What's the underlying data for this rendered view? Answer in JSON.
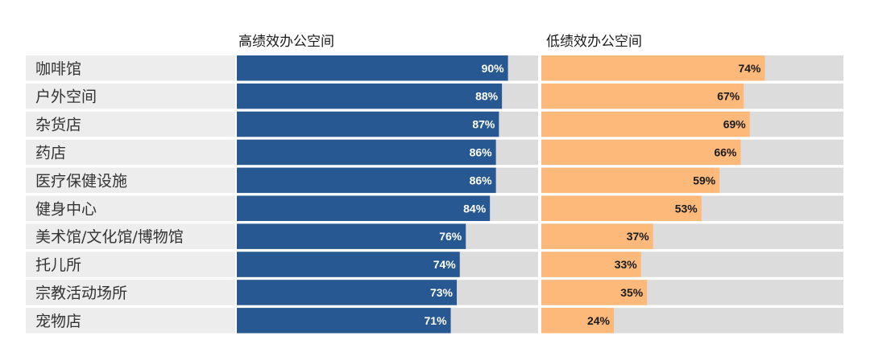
{
  "chart_data": {
    "type": "bar",
    "orientation": "horizontal",
    "categories": [
      "咖啡馆",
      "户外空间",
      "杂货店",
      "药店",
      "医疗保健设施",
      "健身中心",
      "美术馆/文化馆/博物馆",
      "托儿所",
      "宗教活动场所",
      "宠物店"
    ],
    "series": [
      {
        "name": "高绩效办公空间",
        "values": [
          90,
          88,
          87,
          86,
          86,
          84,
          76,
          74,
          73,
          71
        ],
        "labels": [
          "90%",
          "88%",
          "87%",
          "86%",
          "86%",
          "84%",
          "76%",
          "74%",
          "73%",
          "71%"
        ],
        "color": "#275891",
        "label_color": "#ffffff"
      },
      {
        "name": "低绩效办公空间",
        "values": [
          74,
          67,
          69,
          66,
          59,
          53,
          37,
          33,
          35,
          24
        ],
        "labels": [
          "74%",
          "67%",
          "69%",
          "66%",
          "59%",
          "53%",
          "37%",
          "33%",
          "35%",
          "24%"
        ],
        "color": "#fcb97a",
        "label_color": "#1a1a1a"
      }
    ],
    "unit": "%",
    "xlim": [
      0,
      100
    ],
    "track_color": "#dcdcdc",
    "category_band_color": "#ededed",
    "legend": "column-headers",
    "grid": false
  }
}
